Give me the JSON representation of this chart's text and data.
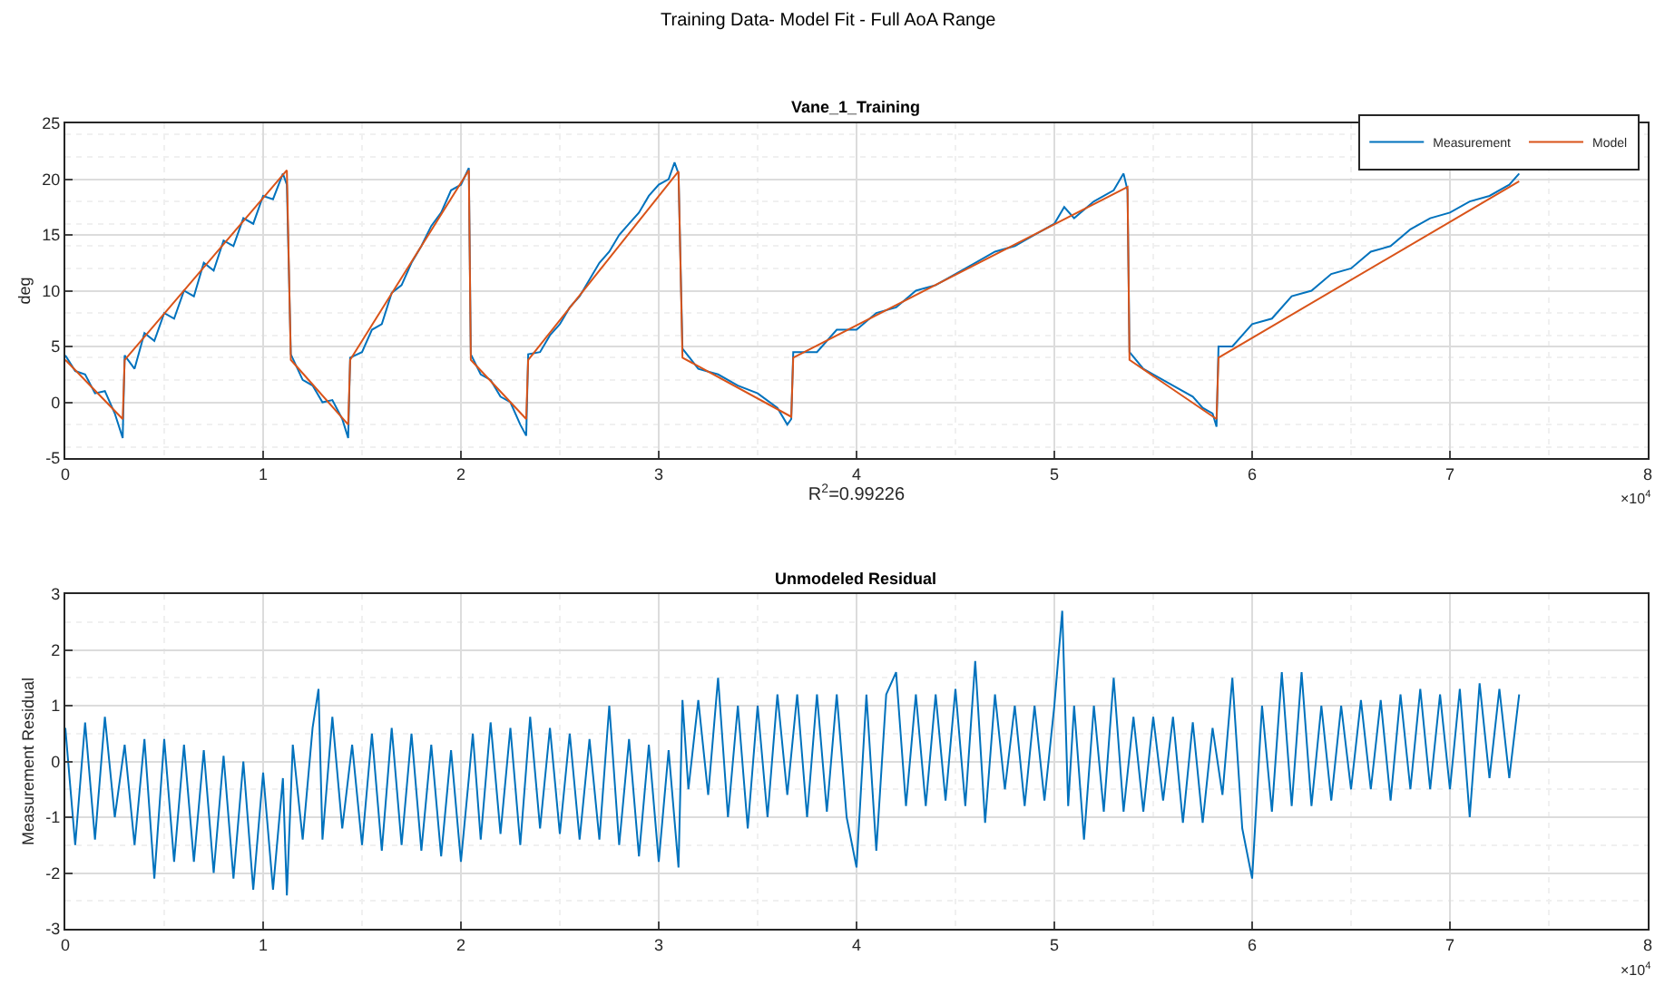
{
  "chart_data": [
    {
      "type": "line",
      "title": "Vane_1_Training",
      "xlabel": "R$^{2}$=0.99226",
      "ylabel": "deg",
      "annotations": [
        "Training Data- Model Fit - Full AoA Range",
        "×10$^{4}$"
      ],
      "xlim": [
        0,
        8
      ],
      "xticks": [
        0,
        1,
        2,
        3,
        4,
        5,
        6,
        7,
        8
      ],
      "ylim": [
        -5,
        25
      ],
      "yticks": [
        -5,
        0,
        5,
        10,
        15,
        20,
        25
      ],
      "grid": true,
      "legend": "top right",
      "marker": "none",
      "line_style": "solid",
      "series": [
        {
          "name": "Measurement",
          "color": "#0072bd",
          "x": [
            0,
            0.05,
            0.1,
            0.15,
            0.2,
            0.25,
            0.29,
            0.3,
            0.35,
            0.4,
            0.45,
            0.5,
            0.55,
            0.6,
            0.65,
            0.7,
            0.75,
            0.8,
            0.85,
            0.9,
            0.95,
            1.0,
            1.05,
            1.1,
            1.12,
            1.14,
            1.2,
            1.25,
            1.3,
            1.35,
            1.4,
            1.43,
            1.44,
            1.5,
            1.55,
            1.6,
            1.65,
            1.7,
            1.75,
            1.8,
            1.85,
            1.9,
            1.95,
            2.0,
            2.04,
            2.05,
            2.1,
            2.15,
            2.2,
            2.25,
            2.3,
            2.33,
            2.34,
            2.4,
            2.45,
            2.5,
            2.55,
            2.6,
            2.65,
            2.7,
            2.75,
            2.8,
            2.85,
            2.9,
            2.95,
            3.0,
            3.05,
            3.08,
            3.1,
            3.12,
            3.2,
            3.3,
            3.4,
            3.5,
            3.6,
            3.65,
            3.67,
            3.68,
            3.8,
            3.9,
            4.0,
            4.1,
            4.2,
            4.3,
            4.4,
            4.5,
            4.6,
            4.7,
            4.8,
            4.9,
            5.0,
            5.05,
            5.1,
            5.2,
            5.3,
            5.35,
            5.37,
            5.38,
            5.45,
            5.5,
            5.6,
            5.7,
            5.75,
            5.8,
            5.82,
            5.83,
            5.9,
            6.0,
            6.1,
            6.2,
            6.3,
            6.4,
            6.5,
            6.6,
            6.7,
            6.8,
            6.9,
            7.0,
            7.1,
            7.2,
            7.3,
            7.35
          ],
          "values": [
            4.2,
            2.8,
            2.5,
            0.8,
            1.0,
            -1.0,
            -3.2,
            4.2,
            3.0,
            6.2,
            5.5,
            8.0,
            7.5,
            10.0,
            9.5,
            12.5,
            11.8,
            14.5,
            14.0,
            16.5,
            16.0,
            18.5,
            18.2,
            20.5,
            19.5,
            4.3,
            2.0,
            1.5,
            0.0,
            0.2,
            -1.5,
            -3.2,
            4.0,
            4.5,
            6.5,
            7.0,
            9.8,
            10.5,
            12.5,
            14.0,
            15.8,
            17.0,
            19.0,
            19.5,
            21.0,
            4.3,
            2.5,
            2.0,
            0.5,
            0.0,
            -2.0,
            -3.0,
            4.3,
            4.5,
            6.0,
            7.0,
            8.5,
            9.5,
            11.0,
            12.5,
            13.5,
            15.0,
            16.0,
            17.0,
            18.5,
            19.5,
            20.0,
            21.5,
            20.5,
            4.8,
            3.0,
            2.5,
            1.5,
            0.8,
            -0.5,
            -2.0,
            -1.5,
            4.5,
            4.5,
            6.5,
            6.5,
            8.0,
            8.5,
            10.0,
            10.5,
            11.5,
            12.5,
            13.5,
            14.0,
            15.0,
            16.0,
            17.5,
            16.5,
            18.0,
            19.0,
            20.5,
            19.0,
            4.5,
            3.0,
            2.5,
            1.5,
            0.5,
            -0.5,
            -1.0,
            -2.2,
            5.0,
            5.0,
            7.0,
            7.5,
            9.5,
            10.0,
            11.5,
            12.0,
            13.5,
            14.0,
            15.5,
            16.5,
            17.0,
            18.0,
            18.5,
            19.5,
            20.5
          ]
        },
        {
          "name": "Model",
          "color": "#d95319",
          "x": [
            0,
            0.29,
            0.3,
            1.12,
            1.14,
            1.43,
            1.44,
            2.04,
            2.05,
            2.33,
            2.34,
            3.1,
            3.12,
            3.67,
            3.68,
            5.37,
            5.38,
            5.82,
            5.83,
            7.35
          ],
          "values": [
            3.8,
            -1.5,
            3.8,
            20.8,
            3.8,
            -2.0,
            3.8,
            20.8,
            3.8,
            -1.5,
            3.8,
            20.7,
            4.0,
            -1.3,
            4.0,
            19.3,
            3.8,
            -1.5,
            4.0,
            19.8
          ]
        }
      ]
    },
    {
      "type": "line",
      "title": "Unmodeled Residual",
      "ylabel": "Measurement Residual",
      "annotations": [
        "×10$^{4}$"
      ],
      "xlim": [
        0,
        8
      ],
      "xticks": [
        0,
        1,
        2,
        3,
        4,
        5,
        6,
        7,
        8
      ],
      "ylim": [
        -3,
        3
      ],
      "yticks": [
        -3,
        -2,
        -1,
        0,
        1,
        2,
        3
      ],
      "grid": true,
      "legend": false,
      "marker": "none",
      "line_style": "solid",
      "series": [
        {
          "color": "#0072bd",
          "x": [
            0,
            0.05,
            0.1,
            0.15,
            0.2,
            0.25,
            0.3,
            0.35,
            0.4,
            0.45,
            0.5,
            0.55,
            0.6,
            0.65,
            0.7,
            0.75,
            0.8,
            0.85,
            0.9,
            0.95,
            1.0,
            1.05,
            1.1,
            1.12,
            1.15,
            1.2,
            1.25,
            1.28,
            1.3,
            1.35,
            1.4,
            1.45,
            1.5,
            1.55,
            1.6,
            1.65,
            1.7,
            1.75,
            1.8,
            1.85,
            1.9,
            1.95,
            2.0,
            2.04,
            2.06,
            2.1,
            2.15,
            2.2,
            2.25,
            2.3,
            2.35,
            2.4,
            2.45,
            2.5,
            2.55,
            2.6,
            2.65,
            2.7,
            2.75,
            2.8,
            2.85,
            2.9,
            2.95,
            3.0,
            3.05,
            3.1,
            3.12,
            3.15,
            3.2,
            3.25,
            3.3,
            3.35,
            3.4,
            3.45,
            3.5,
            3.55,
            3.6,
            3.65,
            3.7,
            3.75,
            3.8,
            3.85,
            3.9,
            3.95,
            4.0,
            4.05,
            4.1,
            4.15,
            4.2,
            4.25,
            4.3,
            4.35,
            4.4,
            4.45,
            4.5,
            4.55,
            4.6,
            4.65,
            4.7,
            4.75,
            4.8,
            4.85,
            4.9,
            4.95,
            5.0,
            5.04,
            5.07,
            5.1,
            5.15,
            5.2,
            5.25,
            5.3,
            5.35,
            5.4,
            5.45,
            5.5,
            5.55,
            5.6,
            5.65,
            5.7,
            5.75,
            5.8,
            5.85,
            5.9,
            5.95,
            6.0,
            6.05,
            6.1,
            6.15,
            6.2,
            6.25,
            6.3,
            6.35,
            6.4,
            6.45,
            6.5,
            6.55,
            6.6,
            6.65,
            6.7,
            6.75,
            6.8,
            6.85,
            6.9,
            6.95,
            7.0,
            7.05,
            7.1,
            7.15,
            7.2,
            7.25,
            7.3,
            7.35
          ],
          "values": [
            0.6,
            -1.5,
            0.7,
            -1.4,
            0.8,
            -1.0,
            0.3,
            -1.5,
            0.4,
            -2.1,
            0.4,
            -1.8,
            0.3,
            -1.8,
            0.2,
            -2.0,
            0.1,
            -2.1,
            0.0,
            -2.3,
            -0.2,
            -2.3,
            -0.3,
            -2.4,
            0.3,
            -1.4,
            0.6,
            1.3,
            -1.4,
            0.8,
            -1.2,
            0.3,
            -1.5,
            0.5,
            -1.6,
            0.6,
            -1.5,
            0.5,
            -1.6,
            0.3,
            -1.7,
            0.2,
            -1.8,
            -0.3,
            0.5,
            -1.4,
            0.7,
            -1.3,
            0.6,
            -1.5,
            0.8,
            -1.2,
            0.6,
            -1.3,
            0.5,
            -1.4,
            0.4,
            -1.4,
            1.0,
            -1.5,
            0.4,
            -1.7,
            0.3,
            -1.8,
            0.2,
            -1.9,
            1.1,
            -0.5,
            1.1,
            -0.6,
            1.5,
            -1.0,
            1.0,
            -1.2,
            1.0,
            -1.0,
            1.2,
            -0.6,
            1.2,
            -1.0,
            1.2,
            -0.9,
            1.2,
            -1.0,
            -1.9,
            1.2,
            -1.6,
            1.2,
            1.6,
            -0.8,
            1.2,
            -0.8,
            1.2,
            -0.7,
            1.3,
            -0.8,
            1.8,
            -1.1,
            1.2,
            -0.5,
            1.0,
            -0.8,
            1.0,
            -0.7,
            1.0,
            2.7,
            -0.8,
            1.0,
            -1.4,
            1.0,
            -0.9,
            1.5,
            -0.9,
            0.8,
            -0.9,
            0.8,
            -0.7,
            0.8,
            -1.1,
            0.7,
            -1.1,
            0.6,
            -0.6,
            1.5,
            -1.2,
            -2.1,
            1.0,
            -0.9,
            1.6,
            -0.8,
            1.6,
            -0.8,
            1.0,
            -0.7,
            1.0,
            -0.5,
            1.1,
            -0.5,
            1.1,
            -0.7,
            1.2,
            -0.5,
            1.3,
            -0.5,
            1.2,
            -0.5,
            1.3,
            -1.0,
            1.4,
            -0.3,
            1.3,
            -0.3,
            1.2
          ]
        }
      ]
    }
  ]
}
